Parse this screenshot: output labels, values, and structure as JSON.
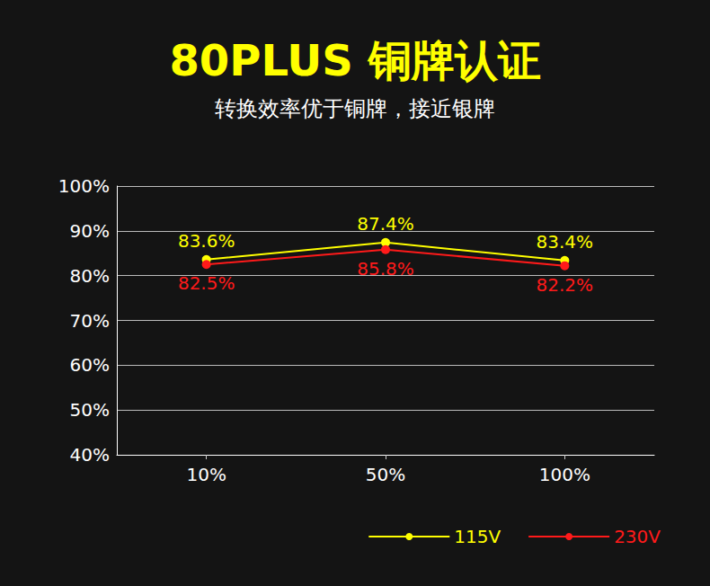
{
  "chart_data": {
    "type": "line",
    "title": "80PLUS 铜牌认证",
    "subtitle": "转换效率优于铜牌，接近银牌",
    "categories": [
      "10%",
      "50%",
      "100%"
    ],
    "series": [
      {
        "name": "115V",
        "color": "#ffff00",
        "values": [
          83.6,
          87.4,
          83.4
        ],
        "value_labels": [
          "83.6%",
          "87.4%",
          "83.4%"
        ]
      },
      {
        "name": "230V",
        "color": "#ff1a1a",
        "values": [
          82.5,
          85.8,
          82.2
        ],
        "value_labels": [
          "82.5%",
          "85.8%",
          "82.2%"
        ]
      }
    ],
    "ylim": [
      40,
      100
    ],
    "yticks": [
      {
        "value": 40,
        "label": "40%"
      },
      {
        "value": 50,
        "label": "50%"
      },
      {
        "value": 60,
        "label": "60%"
      },
      {
        "value": 70,
        "label": "70%"
      },
      {
        "value": 80,
        "label": "80%"
      },
      {
        "value": 90,
        "label": "90%"
      },
      {
        "value": 100,
        "label": "100%"
      }
    ],
    "grid": true,
    "legend": "bottom-right",
    "data_labels": true,
    "marker": "circle"
  }
}
